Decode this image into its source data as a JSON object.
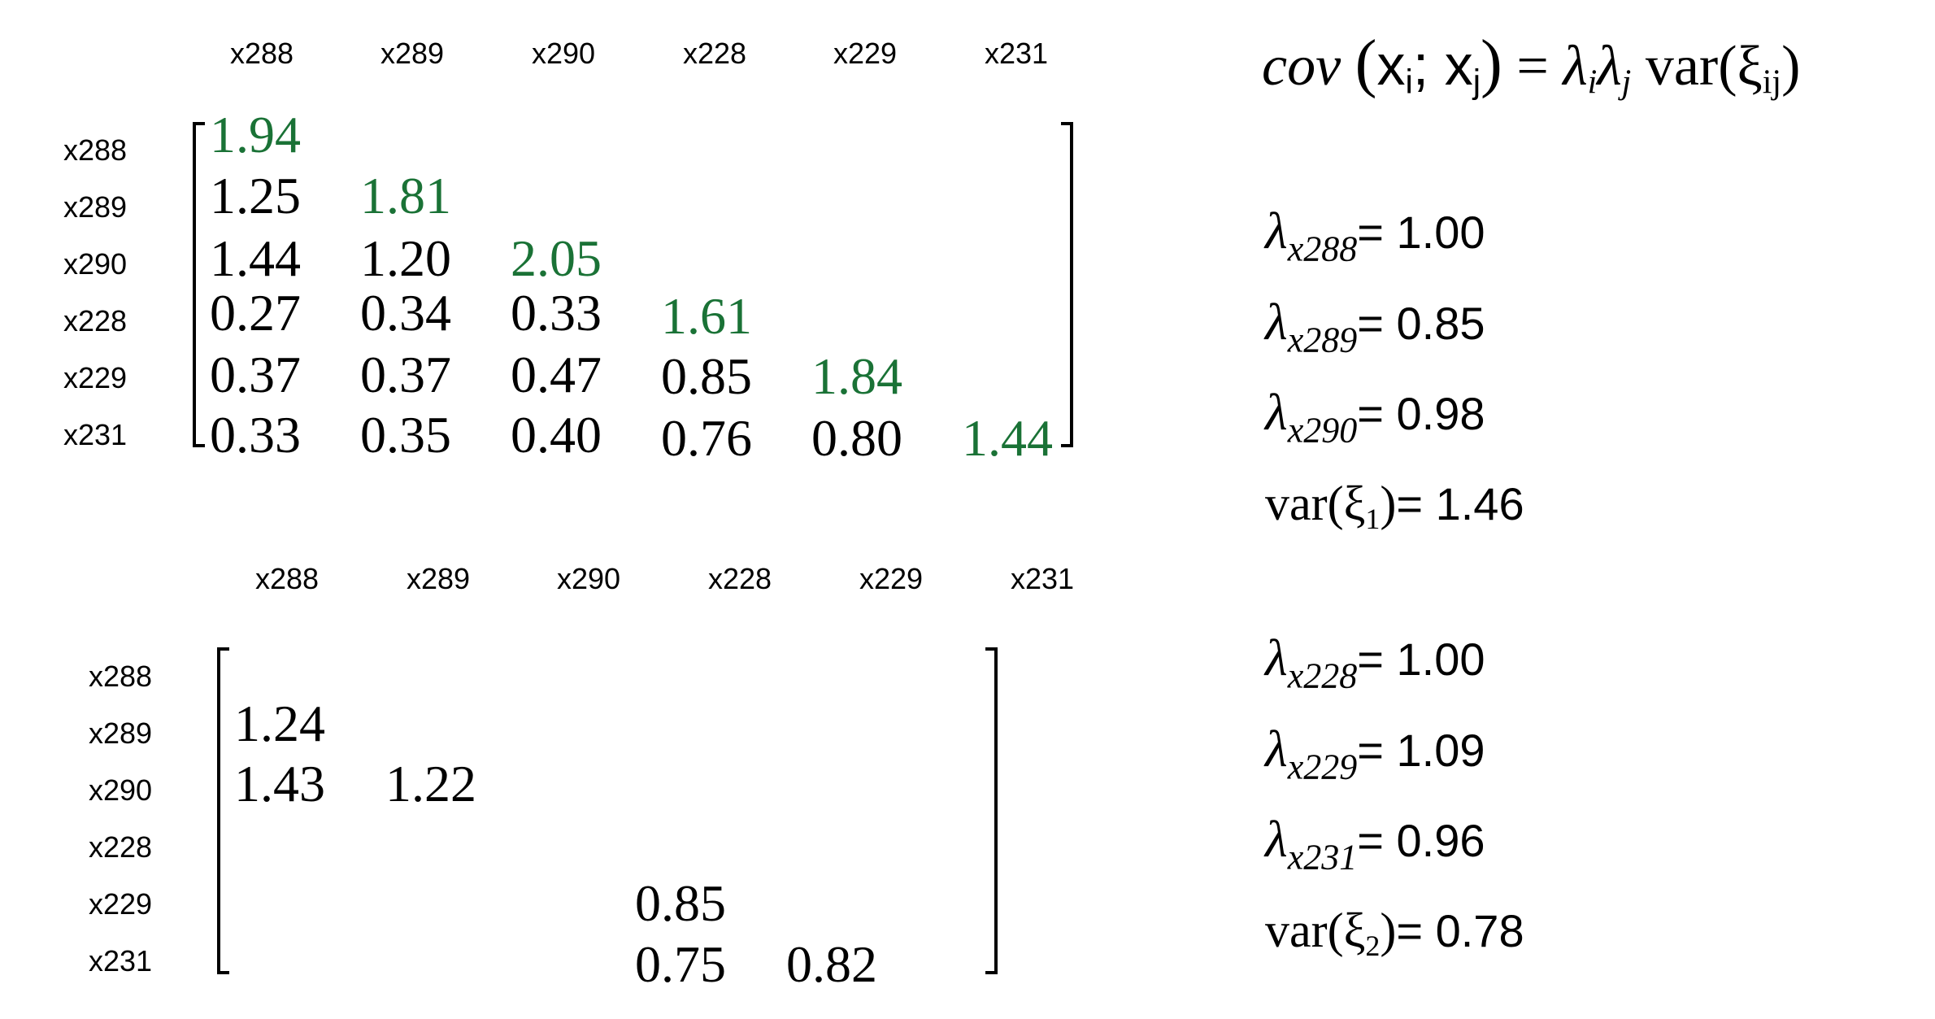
{
  "matrix_top": {
    "columns": [
      "x288",
      "x289",
      "x290",
      "x228",
      "x229",
      "x231"
    ],
    "rows": [
      {
        "label": "x288",
        "values": [
          "1.94"
        ]
      },
      {
        "label": "x289",
        "values": [
          "1.25",
          "1.81"
        ]
      },
      {
        "label": "x290",
        "values": [
          "1.44",
          "1.20",
          "2.05"
        ]
      },
      {
        "label": "x228",
        "values": [
          "0.27",
          "0.34",
          "0.33",
          "1.61"
        ]
      },
      {
        "label": "x229",
        "values": [
          "0.37",
          "0.37",
          "0.47",
          "0.85",
          "1.84"
        ]
      },
      {
        "label": "x231",
        "values": [
          "0.33",
          "0.35",
          "0.40",
          "0.76",
          "0.80",
          "1.44"
        ]
      }
    ],
    "diagonal_color": "#1a7236"
  },
  "matrix_bottom": {
    "columns": [
      "x288",
      "x289",
      "x290",
      "x228",
      "x229",
      "x231"
    ],
    "rows": [
      {
        "label": "x288",
        "values": [
          "",
          "",
          "",
          "",
          "",
          ""
        ]
      },
      {
        "label": "x289",
        "values": [
          "1.24",
          "",
          "",
          "",
          "",
          ""
        ]
      },
      {
        "label": "x290",
        "values": [
          "1.43",
          "1.22",
          "",
          "",
          "",
          ""
        ]
      },
      {
        "label": "x228",
        "values": [
          "",
          "",
          "",
          "",
          "",
          ""
        ]
      },
      {
        "label": "x229",
        "values": [
          "",
          "",
          "",
          "0.85",
          "",
          ""
        ]
      },
      {
        "label": "x231",
        "values": [
          "",
          "",
          "",
          "0.75",
          "0.82",
          ""
        ]
      }
    ]
  },
  "formula": {
    "cov": "cov",
    "args": "xᵢ; xⱼ",
    "arg_x1": "x",
    "arg_i": "i",
    "arg_sep": "; ",
    "arg_x2": "x",
    "arg_j": "j",
    "equals": " = ",
    "lambda_i": "λ",
    "sub_i": "i",
    "lambda_j": "λ",
    "sub_j": "j",
    "var": " var(",
    "xi": "ξ",
    "xi_sub": "ij",
    "close": ")"
  },
  "params": [
    {
      "symbol": "λ",
      "sub": "x288",
      "value": "= 1.00"
    },
    {
      "symbol": "λ",
      "sub": "x289",
      "value": "= 0.85"
    },
    {
      "symbol": "λ",
      "sub": "x290",
      "value": "= 0.98"
    },
    {
      "var": "var(ξ",
      "sub": "1",
      "close": ")",
      "value": "= 1.46"
    },
    {
      "symbol": "λ",
      "sub": "x228",
      "value": "= 1.00"
    },
    {
      "symbol": "λ",
      "sub": "x229",
      "value": "= 1.09"
    },
    {
      "symbol": "λ",
      "sub": "x231",
      "value": "= 0.96"
    },
    {
      "var": "var(ξ",
      "sub": "2",
      "close": ")",
      "value": "= 0.78"
    }
  ]
}
